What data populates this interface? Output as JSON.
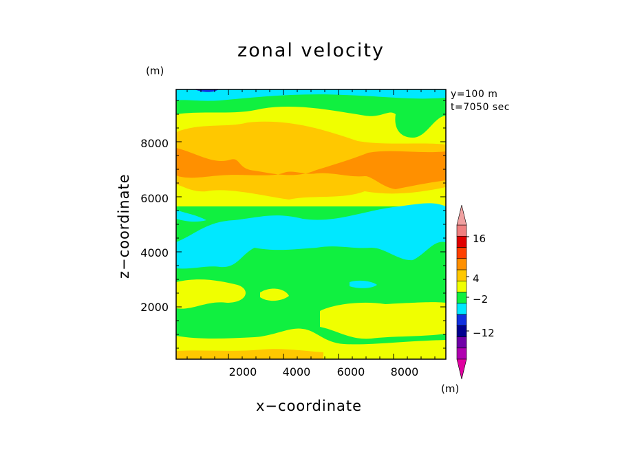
{
  "chart_data": {
    "type": "heatmap",
    "title": "zonal velocity",
    "xlabel": "x−coordinate",
    "ylabel": "z−coordinate",
    "x_unit": "(m)",
    "z_unit": "(m)",
    "colorbar_unit": "(m)",
    "annotations": [
      "y=100 m",
      "t=7050 sec"
    ],
    "xlim": [
      100,
      9900
    ],
    "ylim": [
      100,
      9900
    ],
    "xticks": [
      2000,
      4000,
      6000,
      8000
    ],
    "yticks": [
      2000,
      4000,
      6000,
      8000
    ],
    "xtick_labels": [
      "2000",
      "4000",
      "6000",
      "8000"
    ],
    "ytick_labels": [
      "2000",
      "4000",
      "6000",
      "8000"
    ],
    "colorbar": {
      "labels": [
        {
          "value": 16,
          "text": "16"
        },
        {
          "value": 4,
          "text": "4"
        },
        {
          "value": -2,
          "text": "−2"
        },
        {
          "value": -12,
          "text": "−12"
        }
      ],
      "colors": [
        "#b000b0",
        "#7000a8",
        "#000090",
        "#1030e0",
        "#00e8ff",
        "#10f040",
        "#f0ff00",
        "#ffc800",
        "#ff9000",
        "#ff4000",
        "#e00000",
        "#f08080"
      ],
      "extend_low_color": "#e000a0",
      "extend_high_color": "#f0a0a0"
    },
    "bands": {
      "description": "rough layered contour bands of zonal velocity by height (m)",
      "layers": [
        {
          "z_range": [
            100,
            400
          ],
          "level": "4"
        },
        {
          "z_range": [
            400,
            900
          ],
          "level": "0 to 4"
        },
        {
          "z_range": [
            900,
            1900
          ],
          "level": "-2 to 0"
        },
        {
          "z_range": [
            1900,
            2400
          ],
          "level": "0 to 4"
        },
        {
          "z_range": [
            2400,
            3400
          ],
          "level": "-2 to 0"
        },
        {
          "z_range": [
            3400,
            4600
          ],
          "level": "-4 to -2"
        },
        {
          "z_range": [
            4600,
            5900
          ],
          "level": "-2 to 0"
        },
        {
          "z_range": [
            5900,
            6600
          ],
          "level": "0 to 4"
        },
        {
          "z_range": [
            6600,
            7400
          ],
          "level": "4 to 8"
        },
        {
          "z_range": [
            7400,
            8200
          ],
          "level": "4"
        },
        {
          "z_range": [
            8200,
            9200
          ],
          "level": "0 to 4"
        },
        {
          "z_range": [
            9200,
            9700
          ],
          "level": "-2 to 0"
        },
        {
          "z_range": [
            9700,
            9900
          ],
          "level": "-4 to -2"
        }
      ]
    }
  }
}
